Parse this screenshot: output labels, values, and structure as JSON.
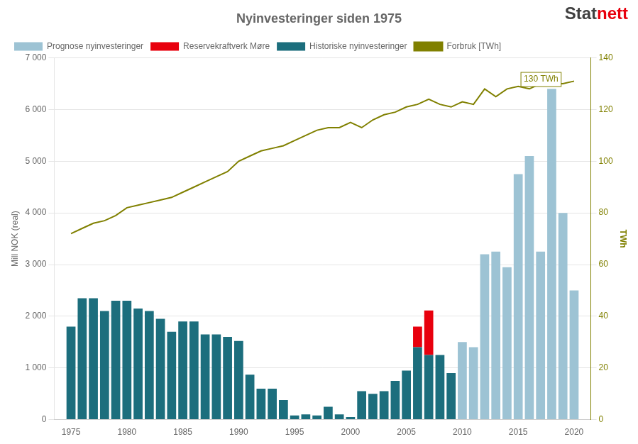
{
  "chart_data": {
    "type": "bar",
    "title": "Nyinvesteringer siden 1975",
    "ylabel": "Mill NOK (real)",
    "y2label": "TWh",
    "x": [
      1975,
      1976,
      1977,
      1978,
      1979,
      1980,
      1981,
      1982,
      1983,
      1984,
      1985,
      1986,
      1987,
      1988,
      1989,
      1990,
      1991,
      1992,
      1993,
      1994,
      1995,
      1996,
      1997,
      1998,
      1999,
      2000,
      2001,
      2002,
      2003,
      2004,
      2005,
      2006,
      2007,
      2008,
      2009,
      2010,
      2011,
      2012,
      2013,
      2014,
      2015,
      2016,
      2017,
      2018,
      2019,
      2020
    ],
    "xlim": [
      1973.5,
      2021.5
    ],
    "xticks": [
      1975,
      1980,
      1985,
      1990,
      1995,
      2000,
      2005,
      2010,
      2015,
      2020
    ],
    "ylim": [
      0,
      7000
    ],
    "yticks": [
      0,
      {
        "value": 1000,
        "label": "1 000"
      },
      {
        "value": 2000,
        "label": "2 000"
      },
      {
        "value": 3000,
        "label": "3 000"
      },
      {
        "value": 4000,
        "label": "4 000"
      },
      {
        "value": 5000,
        "label": "5 000"
      },
      {
        "value": 6000,
        "label": "6 000"
      },
      {
        "value": 7000,
        "label": "7 000"
      }
    ],
    "y2lim": [
      0,
      140
    ],
    "y2ticks": [
      0,
      20,
      40,
      60,
      80,
      100,
      120,
      140
    ],
    "stacked": true,
    "grid": true,
    "legend": "upper left",
    "series": [
      {
        "name": "Prognose nyinvesteringer",
        "color": "#9dc3d4",
        "values": [
          null,
          null,
          null,
          null,
          null,
          null,
          null,
          null,
          null,
          null,
          null,
          null,
          null,
          null,
          null,
          null,
          null,
          null,
          null,
          null,
          null,
          null,
          null,
          null,
          null,
          null,
          null,
          null,
          null,
          null,
          null,
          null,
          null,
          null,
          null,
          1500,
          1400,
          3200,
          3250,
          2950,
          4750,
          5100,
          3250,
          6400,
          4000,
          2500
        ]
      },
      {
        "name": "Reservekraftverk Møre",
        "color": "#e8000d",
        "values": [
          null,
          null,
          null,
          null,
          null,
          null,
          null,
          null,
          null,
          null,
          null,
          null,
          null,
          null,
          null,
          null,
          null,
          null,
          null,
          null,
          null,
          null,
          null,
          null,
          null,
          null,
          null,
          null,
          null,
          null,
          null,
          400,
          860,
          null,
          null,
          null,
          null,
          null,
          null,
          null,
          null,
          null,
          null,
          null,
          null,
          null
        ]
      },
      {
        "name": "Historiske nyinvesteringer",
        "color": "#1c6e7d",
        "values": [
          1800,
          2350,
          2350,
          2100,
          2300,
          2300,
          2150,
          2100,
          1950,
          1700,
          1900,
          1900,
          1650,
          1650,
          1600,
          1520,
          870,
          600,
          600,
          380,
          80,
          100,
          80,
          250,
          100,
          50,
          550,
          500,
          550,
          750,
          950,
          1400,
          1250,
          1250,
          900,
          null,
          null,
          null,
          null,
          null,
          null,
          null,
          null,
          null,
          null,
          null
        ]
      },
      {
        "name": "Forbruk [TWh]",
        "type": "line",
        "axis": "y2",
        "color": "#808000",
        "values": [
          72,
          74,
          76,
          77,
          79,
          82,
          83,
          84,
          85,
          86,
          88,
          90,
          92,
          94,
          96,
          100,
          102,
          104,
          105,
          106,
          108,
          110,
          112,
          113,
          113,
          115,
          113,
          116,
          118,
          119,
          121,
          122,
          124,
          122,
          121,
          123,
          122,
          128,
          125,
          128,
          129,
          128,
          130,
          130,
          130,
          131
        ]
      }
    ],
    "annotations": [
      {
        "text": "130 TWh",
        "x": 2015.5,
        "y": 130,
        "axis": "y2",
        "color": "#808000"
      }
    ],
    "logo": [
      {
        "text": "Stat",
        "color": "#404040"
      },
      {
        "text": "nett",
        "color": "#e8000d"
      }
    ]
  }
}
